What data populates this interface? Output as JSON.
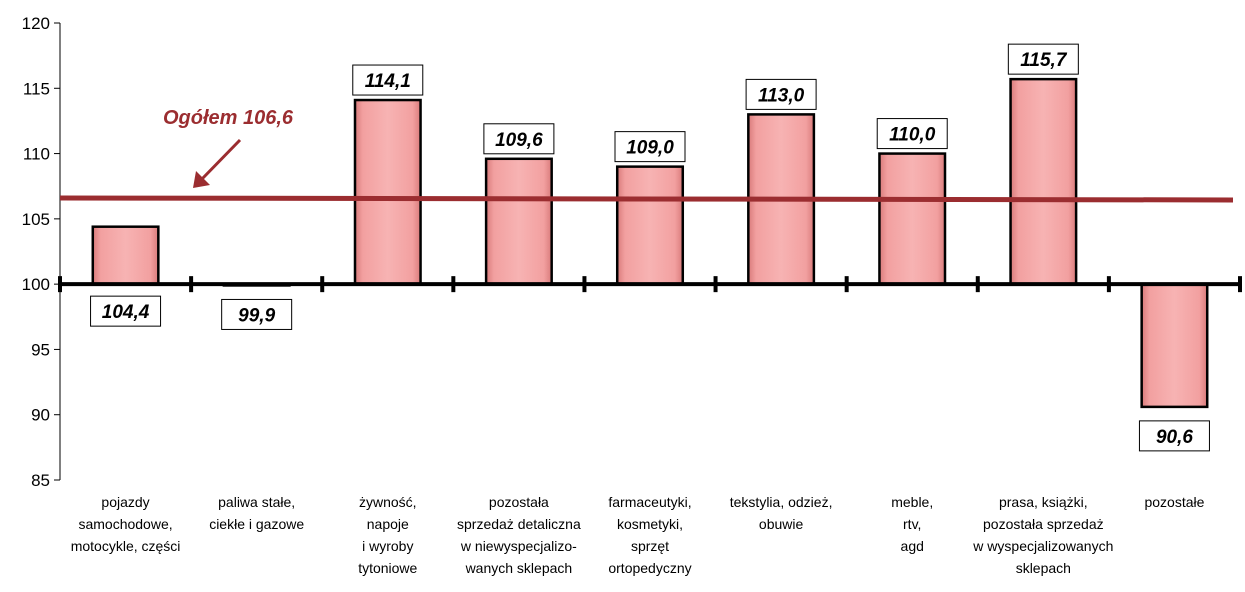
{
  "chart_data": {
    "type": "bar",
    "baseline": 100,
    "ylim": [
      85,
      120
    ],
    "yticks": [
      85,
      90,
      95,
      100,
      105,
      110,
      115,
      120
    ],
    "title": "",
    "xlabel": "",
    "ylabel": "",
    "grid": false,
    "categories": [
      [
        "pojazdy",
        "samochodowe,",
        "motocykle, części"
      ],
      [
        "paliwa stałe,",
        "ciekłe i gazowe"
      ],
      [
        "żywność,",
        "napoje",
        "i wyroby",
        "tytoniowe"
      ],
      [
        "pozostała",
        "sprzedaż detaliczna",
        "w niewyspecjalizo-",
        "wanych sklepach"
      ],
      [
        "farmaceutyki,",
        "kosmetyki,",
        "sprzęt",
        "ortopedyczny"
      ],
      [
        "tekstylia, odzież,",
        "obuwie"
      ],
      [
        "meble,",
        "rtv,",
        "agd"
      ],
      [
        "prasa, książki,",
        "pozostała sprzedaż",
        "w wyspecjalizowanych",
        "sklepach"
      ],
      [
        "pozostałe"
      ]
    ],
    "values": [
      104.4,
      99.9,
      114.1,
      109.6,
      109.0,
      113.0,
      110.0,
      115.7,
      90.6
    ],
    "value_labels": [
      "104,4",
      "99,9",
      "114,1",
      "109,6",
      "109,0",
      "113,0",
      "110,0",
      "115,7",
      "90,6"
    ],
    "overall": {
      "value": 106.6,
      "label": "Ogółem 106,6",
      "color": "#9b2d30"
    },
    "colors": {
      "bar_fill": "#f2a0a0",
      "bar_stroke": "#000000",
      "axis": "#000000"
    }
  }
}
